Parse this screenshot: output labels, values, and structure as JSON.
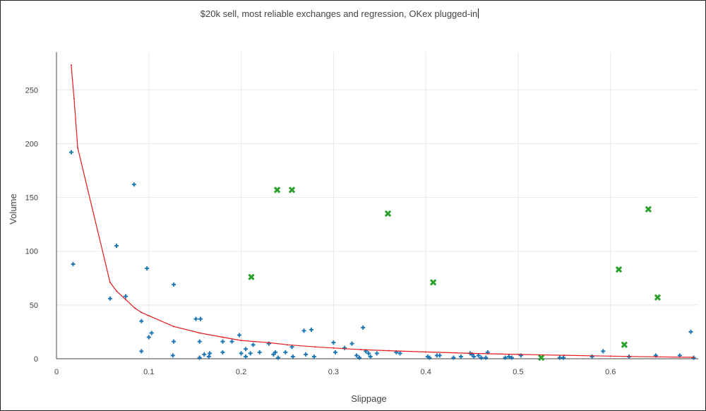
{
  "chart_data": {
    "type": "scatter",
    "title": "$20k sell, most reliable exchanges and regression, OKex plugged-in",
    "xlabel": "Slippage",
    "ylabel": "Volume",
    "xlim": [
      0,
      0.695
    ],
    "ylim": [
      0,
      285
    ],
    "x_ticks": [
      0,
      0.1,
      0.2,
      0.3,
      0.4,
      0.5,
      0.6
    ],
    "x_tick_labels": [
      "0",
      "0.1",
      "0.2",
      "0.3",
      "0.4",
      "0.5",
      "0.6"
    ],
    "y_ticks": [
      0,
      50,
      100,
      150,
      200,
      250
    ],
    "y_tick_labels": [
      "0",
      "50",
      "100",
      "150",
      "200",
      "250"
    ],
    "grid": true,
    "legend": "none",
    "colors": {
      "blue": "#1f77b4",
      "green": "#2ca02c",
      "red": "#e41a1c",
      "grid": "#e8e8e8"
    },
    "series": [
      {
        "marker": "cross",
        "color": "#1f77b4",
        "points": [
          [
            0.016,
            192
          ],
          [
            0.018,
            88
          ],
          [
            0.065,
            105
          ],
          [
            0.084,
            162
          ],
          [
            0.058,
            56
          ],
          [
            0.075,
            58
          ],
          [
            0.092,
            35
          ],
          [
            0.098,
            84
          ],
          [
            0.1,
            20
          ],
          [
            0.103,
            24
          ],
          [
            0.092,
            7
          ],
          [
            0.127,
            69
          ],
          [
            0.127,
            16
          ],
          [
            0.126,
            3
          ],
          [
            0.151,
            37
          ],
          [
            0.156,
            37
          ],
          [
            0.155,
            16
          ],
          [
            0.155,
            1
          ],
          [
            0.16,
            4
          ],
          [
            0.166,
            5
          ],
          [
            0.165,
            2
          ],
          [
            0.18,
            16
          ],
          [
            0.18,
            6
          ],
          [
            0.19,
            16
          ],
          [
            0.198,
            22
          ],
          [
            0.2,
            5
          ],
          [
            0.205,
            9
          ],
          [
            0.205,
            2
          ],
          [
            0.21,
            5
          ],
          [
            0.213,
            13
          ],
          [
            0.22,
            6
          ],
          [
            0.23,
            14
          ],
          [
            0.235,
            4
          ],
          [
            0.237,
            6
          ],
          [
            0.24,
            1
          ],
          [
            0.248,
            6
          ],
          [
            0.255,
            11
          ],
          [
            0.256,
            2
          ],
          [
            0.268,
            26
          ],
          [
            0.27,
            4
          ],
          [
            0.276,
            27
          ],
          [
            0.279,
            2
          ],
          [
            0.3,
            15
          ],
          [
            0.302,
            6
          ],
          [
            0.312,
            10
          ],
          [
            0.32,
            14
          ],
          [
            0.325,
            3
          ],
          [
            0.328,
            1
          ],
          [
            0.332,
            29
          ],
          [
            0.335,
            7
          ],
          [
            0.338,
            5
          ],
          [
            0.34,
            2
          ],
          [
            0.347,
            5
          ],
          [
            0.368,
            6
          ],
          [
            0.372,
            5
          ],
          [
            0.402,
            2
          ],
          [
            0.404,
            1
          ],
          [
            0.412,
            3
          ],
          [
            0.415,
            3
          ],
          [
            0.43,
            1
          ],
          [
            0.438,
            2
          ],
          [
            0.448,
            5
          ],
          [
            0.45,
            4
          ],
          [
            0.452,
            2
          ],
          [
            0.457,
            3
          ],
          [
            0.46,
            1
          ],
          [
            0.465,
            1
          ],
          [
            0.467,
            6
          ],
          [
            0.486,
            1
          ],
          [
            0.49,
            2
          ],
          [
            0.493,
            1
          ],
          [
            0.503,
            3
          ],
          [
            0.545,
            1
          ],
          [
            0.549,
            1
          ],
          [
            0.58,
            2
          ],
          [
            0.592,
            7
          ],
          [
            0.62,
            2
          ],
          [
            0.649,
            3
          ],
          [
            0.675,
            3
          ],
          [
            0.687,
            25
          ],
          [
            0.69,
            1
          ]
        ]
      },
      {
        "marker": "x",
        "color": "#2ca02c",
        "points": [
          [
            0.211,
            76
          ],
          [
            0.239,
            157
          ],
          [
            0.255,
            157
          ],
          [
            0.359,
            135
          ],
          [
            0.408,
            71
          ],
          [
            0.525,
            1
          ],
          [
            0.609,
            83
          ],
          [
            0.615,
            13
          ],
          [
            0.641,
            139
          ],
          [
            0.651,
            57
          ]
        ]
      },
      {
        "marker": "line",
        "color": "#e41a1c",
        "points": [
          [
            0.016,
            273
          ],
          [
            0.019,
            242
          ],
          [
            0.023,
            196
          ],
          [
            0.058,
            71
          ],
          [
            0.065,
            63
          ],
          [
            0.075,
            55
          ],
          [
            0.085,
            47
          ],
          [
            0.092,
            43
          ],
          [
            0.1,
            40
          ],
          [
            0.127,
            30
          ],
          [
            0.155,
            24
          ],
          [
            0.18,
            20
          ],
          [
            0.2,
            17
          ],
          [
            0.23,
            15
          ],
          [
            0.25,
            13
          ],
          [
            0.28,
            11
          ],
          [
            0.3,
            10
          ],
          [
            0.33,
            8.5
          ],
          [
            0.36,
            7.5
          ],
          [
            0.4,
            6.3
          ],
          [
            0.45,
            5
          ],
          [
            0.5,
            4
          ],
          [
            0.55,
            3.2
          ],
          [
            0.6,
            2.4
          ],
          [
            0.65,
            1.8
          ],
          [
            0.69,
            1.3
          ]
        ]
      }
    ]
  }
}
